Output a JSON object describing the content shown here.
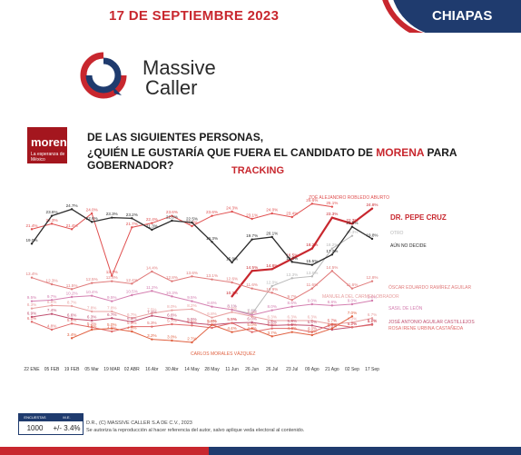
{
  "header": {
    "date": "17 DE SEPTIEMBRE 2023",
    "state": "CHIAPAS"
  },
  "brand": {
    "line1": "Massive",
    "line2": "Caller"
  },
  "party": {
    "name": "morena",
    "tagline": "La esperanza de México"
  },
  "question": {
    "line1": "DE LAS SIGUIENTES PERSONAS,",
    "line2_pre": "¿QUIÉN LE GUSTARÍA QUE FUERA EL CANDIDATO DE ",
    "line2_highlight": "MORENA",
    "line2_post": " PARA GOBERNADOR?"
  },
  "tracking_label": "TRACKING",
  "colors": {
    "red": "#c8272e",
    "navy": "#1f3b6e",
    "dark": "#2b2b2b",
    "lightgray": "#b8b8b8",
    "salmon": "#e07a7a",
    "pink": "#d47fb0"
  },
  "chart_data": {
    "type": "line",
    "x": [
      "22 ENE",
      "05 FEB",
      "19 FEB",
      "05 Mar",
      "19 MAR",
      "02 ABR",
      "16 Abr",
      "30 Abr",
      "14 May",
      "28 May",
      "11 Jun",
      "26 Jun",
      "26 Jul",
      "23 Jul",
      "09 Ago",
      "21 Ago",
      "02 Sep",
      "17 Sep"
    ],
    "ylim": [
      0,
      27
    ],
    "series": [
      {
        "name": "ZOÉ ALEJANDRO ROBLEDO ABURTO",
        "color": "#e05050",
        "width": 1.0,
        "values": [
          21.4,
          22.3,
          21.4,
          24.0,
          13.7,
          21.7,
          22.4,
          23.6,
          21.9,
          23.6,
          24.3,
          23.1,
          24.0,
          23.4,
          25.6,
          25.1,
          null,
          null
        ]
      },
      {
        "name": "DR. PEPE CRUZ",
        "color": "#c8272e",
        "width": 2.2,
        "values": [
          null,
          null,
          null,
          null,
          null,
          null,
          null,
          null,
          null,
          null,
          10.3,
          14.5,
          14.8,
          16.5,
          18.2,
          23.3,
          22.3,
          24.8
        ]
      },
      {
        "name": "OTRO",
        "color": "#b8b8b8",
        "width": 1.0,
        "values": [
          null,
          null,
          null,
          null,
          null,
          null,
          null,
          null,
          null,
          null,
          8.1,
          7.4,
          12.0,
          13.3,
          13.6,
          18.2,
          20.3,
          null
        ]
      },
      {
        "name": "AÚN NO DECIDE",
        "color": "#2b2b2b",
        "width": 1.3,
        "values": [
          19.0,
          23.6,
          24.7,
          22.6,
          23.3,
          23.2,
          21.3,
          22.8,
          22.5,
          19.3,
          15.9,
          19.7,
          20.1,
          16.0,
          15.5,
          17.2,
          21.8,
          19.8
        ]
      },
      {
        "name": "ÓSCAR EDUARDO RAMÍREZ AGUILAR",
        "color": "#e07a7a",
        "width": 1.0,
        "values": [
          13.4,
          12.3,
          11.5,
          12.5,
          12.8,
          12.4,
          14.4,
          12.8,
          13.6,
          13.1,
          12.6,
          11.6,
          10.9,
          9.7,
          11.6,
          14.5,
          11.6,
          12.8
        ]
      },
      {
        "name": "SASIL DE LEÓN",
        "color": "#d47fb0",
        "width": 1.0,
        "values": [
          9.5,
          9.7,
          10.2,
          10.4,
          9.5,
          10.5,
          11.2,
          10.3,
          9.5,
          8.6,
          8.1,
          7.2,
          8.0,
          8.6,
          9.0,
          8.8,
          9.0,
          9.6
        ]
      },
      {
        "name": "MANUELA DEL CARMEN OBRADOR",
        "color": "#e8a0a0",
        "width": 1.0,
        "values": [
          8.3,
          8.8,
          8.7,
          7.8,
          7.8,
          6.7,
          7.5,
          8.0,
          8.2,
          6.8,
          7.7,
          7.0,
          6.3,
          6.3,
          6.3,
          5.7,
          6.0,
          6.7
        ]
      },
      {
        "name": "JOSÉ ANTONIO AGUILAR CASTILLEJOS",
        "color": "#c05070",
        "width": 1.0,
        "values": [
          6.9,
          7.4,
          6.6,
          6.3,
          6.7,
          6.1,
          7.1,
          6.6,
          5.9,
          5.6,
          5.9,
          6.0,
          5.5,
          5.6,
          5.5,
          4.8,
          5.2,
          5.7
        ]
      },
      {
        "name": "ROSA IRENE URBINA CASTAÑEDA",
        "color": "#e06a6a",
        "width": 1.0,
        "values": [
          6.1,
          4.8,
          5.8,
          5.2,
          4.5,
          5.3,
          5.3,
          5.7,
          5.5,
          5.1,
          5.9,
          4.4,
          5.0,
          5.0,
          4.4,
          5.7,
          5.2,
          5.6
        ]
      },
      {
        "name": "CARLOS MORALES VÁZQUEZ",
        "color": "#e06040",
        "width": 1.0,
        "values": [
          null,
          null,
          3.4,
          4.8,
          5.0,
          4.5,
          3.2,
          3.0,
          2.7,
          5.6,
          4.4,
          5.0,
          3.7,
          4.4,
          3.9,
          5.0,
          7.0,
          null
        ]
      }
    ]
  },
  "footer": {
    "col1": "ENCUESTAS REALIZADAS",
    "col2": "M.E.",
    "n": "1000",
    "me": "+/- 3.4%",
    "note1": "D.R., (C) MASSIVE CALLER S.A DE C.V., 2023",
    "note2": "Se autoriza la reproducción al hacer referencia del autor, salvo aplique veda electoral al contenido."
  }
}
